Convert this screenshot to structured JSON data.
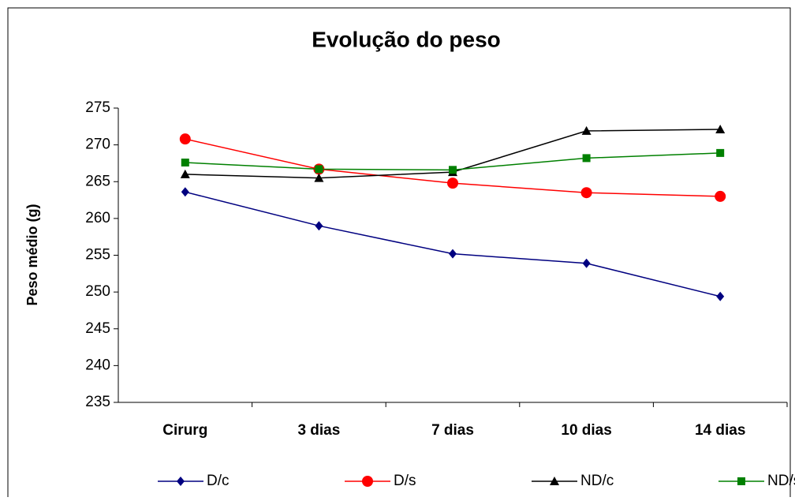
{
  "chart_data": {
    "type": "line",
    "title": "Evolução do peso",
    "y_label": "Peso médio (g)",
    "categories": [
      "Cirurg",
      "3 dias",
      "7 dias",
      "10 dias",
      "14 dias"
    ],
    "series": [
      {
        "name": "D/c",
        "color": "#000080",
        "marker": "diamond",
        "values": [
          263.6,
          259.0,
          255.2,
          253.9,
          249.4
        ]
      },
      {
        "name": "D/s",
        "color": "#ff0000",
        "marker": "circle",
        "values": [
          270.8,
          266.7,
          264.8,
          263.5,
          263.0
        ]
      },
      {
        "name": "ND/c",
        "color": "#000000",
        "marker": "triangle",
        "values": [
          266.0,
          265.5,
          266.3,
          271.9,
          272.1
        ]
      },
      {
        "name": "ND/s",
        "color": "#008000",
        "marker": "square",
        "values": [
          267.6,
          266.7,
          266.6,
          268.2,
          268.9
        ]
      }
    ],
    "ylim": [
      235,
      275
    ],
    "yticks": [
      235,
      240,
      245,
      250,
      255,
      260,
      265,
      270,
      275
    ],
    "grid": false,
    "legend": "bottom"
  }
}
